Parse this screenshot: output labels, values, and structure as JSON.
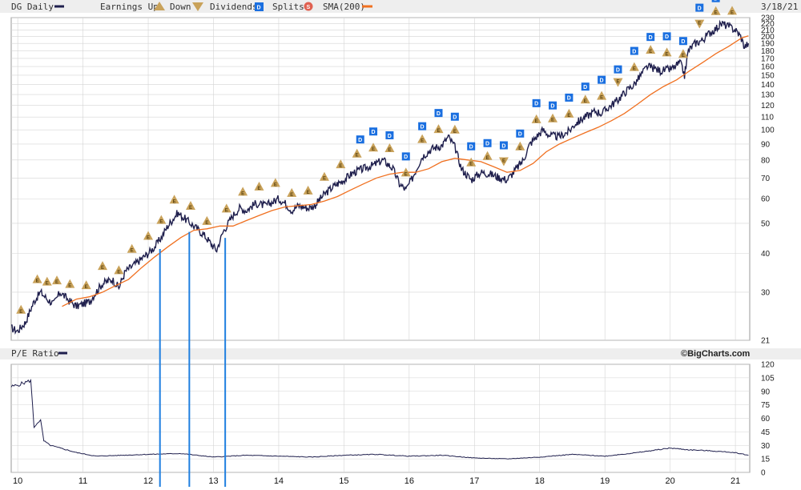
{
  "header": {
    "symbol_label": "DG Daily",
    "earnings_up_label": "Earnings Up",
    "earnings_down_label": "Down",
    "dividends_label": "Dividends",
    "splits_label": "Splits",
    "sma_label": "SMA(200)",
    "date_label": "3/18/21"
  },
  "lower_panel": {
    "label": "P/E Ratio",
    "credit": "©BigCharts.com"
  },
  "icons": {
    "earnings_up": "triangle-up-icon",
    "earnings_down": "triangle-down-icon",
    "dividend": "d-square-icon",
    "split": "s-circle-icon"
  },
  "colors": {
    "price": "#1f1f4d",
    "sma": "#f07020",
    "earnings": "#c9a25a",
    "dividend": "#1a6fe0",
    "split": "#e06050",
    "marker_line": "#1f7fe0",
    "grid": "#d4d4d4",
    "header_bg": "#eeeeee"
  },
  "chart_data": [
    {
      "type": "line",
      "title": "DG Daily",
      "y_scale": "log",
      "ylim": [
        21,
        230
      ],
      "y_ticks": [
        21,
        30,
        40,
        50,
        60,
        70,
        80,
        90,
        100,
        110,
        120,
        130,
        140,
        150,
        160,
        170,
        180,
        190,
        200,
        210,
        220,
        230
      ],
      "x_ticks": [
        "10",
        "11",
        "12",
        "13",
        "14",
        "15",
        "16",
        "17",
        "18",
        "19",
        "20",
        "21"
      ],
      "xlim": [
        2009.9,
        2021.22
      ],
      "grid": true,
      "legend_position": "top",
      "series": [
        {
          "name": "DG Daily",
          "points": [
            [
              2009.9,
              23
            ],
            [
              2010.0,
              22.5
            ],
            [
              2010.12,
              24
            ],
            [
              2010.25,
              28
            ],
            [
              2010.35,
              30
            ],
            [
              2010.45,
              28.5
            ],
            [
              2010.55,
              27.5
            ],
            [
              2010.65,
              30
            ],
            [
              2010.8,
              28
            ],
            [
              2010.9,
              27
            ],
            [
              2011.0,
              27.5
            ],
            [
              2011.1,
              28
            ],
            [
              2011.2,
              30
            ],
            [
              2011.3,
              32
            ],
            [
              2011.45,
              33
            ],
            [
              2011.55,
              31
            ],
            [
              2011.65,
              35
            ],
            [
              2011.8,
              37
            ],
            [
              2012.0,
              40
            ],
            [
              2012.1,
              42
            ],
            [
              2012.2,
              45
            ],
            [
              2012.3,
              49
            ],
            [
              2012.45,
              54
            ],
            [
              2012.55,
              52
            ],
            [
              2012.65,
              50
            ],
            [
              2012.75,
              48
            ],
            [
              2012.85,
              46
            ],
            [
              2013.0,
              42
            ],
            [
              2013.05,
              41
            ],
            [
              2013.15,
              47
            ],
            [
              2013.3,
              53
            ],
            [
              2013.4,
              56
            ],
            [
              2013.5,
              55
            ],
            [
              2013.65,
              58
            ],
            [
              2013.8,
              57
            ],
            [
              2014.0,
              60
            ],
            [
              2014.1,
              58
            ],
            [
              2014.2,
              55
            ],
            [
              2014.3,
              57
            ],
            [
              2014.45,
              56
            ],
            [
              2014.55,
              57
            ],
            [
              2014.7,
              62
            ],
            [
              2014.85,
              66
            ],
            [
              2015.0,
              69
            ],
            [
              2015.15,
              73
            ],
            [
              2015.3,
              75
            ],
            [
              2015.45,
              77
            ],
            [
              2015.6,
              80
            ],
            [
              2015.75,
              75
            ],
            [
              2015.85,
              67
            ],
            [
              2015.95,
              64
            ],
            [
              2016.05,
              70
            ],
            [
              2016.2,
              82
            ],
            [
              2016.35,
              87
            ],
            [
              2016.5,
              89
            ],
            [
              2016.6,
              95
            ],
            [
              2016.7,
              88
            ],
            [
              2016.8,
              75
            ],
            [
              2016.95,
              69
            ],
            [
              2017.1,
              73
            ],
            [
              2017.25,
              72
            ],
            [
              2017.4,
              70
            ],
            [
              2017.5,
              69
            ],
            [
              2017.6,
              73
            ],
            [
              2017.75,
              80
            ],
            [
              2017.85,
              90
            ],
            [
              2017.95,
              95
            ],
            [
              2018.05,
              100
            ],
            [
              2018.15,
              96
            ],
            [
              2018.3,
              95
            ],
            [
              2018.45,
              99
            ],
            [
              2018.55,
              105
            ],
            [
              2018.7,
              110
            ],
            [
              2018.85,
              115
            ],
            [
              2018.95,
              113
            ],
            [
              2019.05,
              118
            ],
            [
              2019.2,
              125
            ],
            [
              2019.35,
              135
            ],
            [
              2019.45,
              140
            ],
            [
              2019.55,
              150
            ],
            [
              2019.65,
              160
            ],
            [
              2019.75,
              158
            ],
            [
              2019.85,
              155
            ],
            [
              2019.95,
              156
            ],
            [
              2020.05,
              158
            ],
            [
              2020.15,
              165
            ],
            [
              2020.22,
              150
            ],
            [
              2020.28,
              180
            ],
            [
              2020.38,
              190
            ],
            [
              2020.5,
              195
            ],
            [
              2020.6,
              205
            ],
            [
              2020.7,
              212
            ],
            [
              2020.8,
              220
            ],
            [
              2020.9,
              215
            ],
            [
              2021.0,
              210
            ],
            [
              2021.08,
              200
            ],
            [
              2021.14,
              185
            ],
            [
              2021.2,
              190
            ]
          ]
        },
        {
          "name": "SMA(200)",
          "points": [
            [
              2010.68,
              27
            ],
            [
              2010.9,
              28.5
            ],
            [
              2011.1,
              29
            ],
            [
              2011.3,
              30
            ],
            [
              2011.5,
              31.5
            ],
            [
              2011.7,
              33
            ],
            [
              2011.9,
              36
            ],
            [
              2012.1,
              39
            ],
            [
              2012.3,
              42
            ],
            [
              2012.5,
              45
            ],
            [
              2012.7,
              47.5
            ],
            [
              2012.9,
              48
            ],
            [
              2013.1,
              49
            ],
            [
              2013.3,
              49
            ],
            [
              2013.5,
              51
            ],
            [
              2013.7,
              53
            ],
            [
              2013.9,
              55
            ],
            [
              2014.1,
              56.5
            ],
            [
              2014.3,
              57
            ],
            [
              2014.5,
              57.5
            ],
            [
              2014.7,
              59
            ],
            [
              2014.9,
              61
            ],
            [
              2015.1,
              64
            ],
            [
              2015.3,
              67
            ],
            [
              2015.5,
              70
            ],
            [
              2015.7,
              72
            ],
            [
              2015.9,
              73
            ],
            [
              2016.1,
              73
            ],
            [
              2016.3,
              75
            ],
            [
              2016.5,
              79
            ],
            [
              2016.7,
              81
            ],
            [
              2016.9,
              80
            ],
            [
              2017.1,
              79
            ],
            [
              2017.3,
              76
            ],
            [
              2017.5,
              73
            ],
            [
              2017.7,
              74
            ],
            [
              2017.9,
              78
            ],
            [
              2018.1,
              85
            ],
            [
              2018.3,
              90
            ],
            [
              2018.5,
              94
            ],
            [
              2018.7,
              98
            ],
            [
              2018.9,
              102
            ],
            [
              2019.1,
              107
            ],
            [
              2019.3,
              113
            ],
            [
              2019.5,
              121
            ],
            [
              2019.7,
              130
            ],
            [
              2019.9,
              138
            ],
            [
              2020.1,
              145
            ],
            [
              2020.3,
              155
            ],
            [
              2020.5,
              165
            ],
            [
              2020.7,
              176
            ],
            [
              2020.9,
              186
            ],
            [
              2021.1,
              198
            ],
            [
              2021.2,
              201
            ]
          ]
        }
      ],
      "earnings_up": [
        2010.05,
        2010.3,
        2010.45,
        2010.6,
        2010.8,
        2011.05,
        2011.3,
        2011.55,
        2011.75,
        2012.0,
        2012.2,
        2012.4,
        2012.65,
        2012.9,
        2013.2,
        2013.45,
        2013.7,
        2013.95,
        2014.2,
        2014.45,
        2014.7,
        2014.95,
        2015.2,
        2015.45,
        2015.7,
        2015.95,
        2016.2,
        2016.45,
        2016.7,
        2016.95,
        2017.2,
        2017.45,
        2017.7,
        2017.95,
        2018.2,
        2018.45,
        2018.7,
        2018.95,
        2019.2,
        2019.45,
        2019.7,
        2019.95,
        2020.2,
        2020.45,
        2020.7,
        2020.95
      ],
      "earnings_down": [
        2017.45,
        2019.2,
        2020.45
      ],
      "dividends": [
        2015.25,
        2015.45,
        2015.7,
        2015.95,
        2016.2,
        2016.45,
        2016.7,
        2016.95,
        2017.2,
        2017.45,
        2017.7,
        2017.95,
        2018.2,
        2018.45,
        2018.7,
        2018.95,
        2019.2,
        2019.45,
        2019.7,
        2019.95,
        2020.2,
        2020.45,
        2020.7,
        2020.95
      ],
      "splits": []
    },
    {
      "type": "line",
      "title": "P/E Ratio",
      "ylim": [
        0,
        120
      ],
      "y_ticks": [
        0,
        15,
        30,
        45,
        60,
        75,
        90,
        105,
        120
      ],
      "x_ticks": [
        "10",
        "11",
        "12",
        "13",
        "14",
        "15",
        "16",
        "17",
        "18",
        "19",
        "20",
        "21"
      ],
      "xlim": [
        2009.9,
        2021.22
      ],
      "grid": true,
      "series": [
        {
          "name": "P/E Ratio",
          "points": [
            [
              2009.9,
              95
            ],
            [
              2010.0,
              97
            ],
            [
              2010.12,
              100
            ],
            [
              2010.2,
              102
            ],
            [
              2010.25,
              50
            ],
            [
              2010.3,
              55
            ],
            [
              2010.35,
              58
            ],
            [
              2010.4,
              35
            ],
            [
              2010.5,
              30
            ],
            [
              2010.6,
              28
            ],
            [
              2010.7,
              26
            ],
            [
              2010.9,
              22
            ],
            [
              2011.2,
              18
            ],
            [
              2011.6,
              19
            ],
            [
              2012.0,
              20
            ],
            [
              2012.5,
              21
            ],
            [
              2013.0,
              17
            ],
            [
              2013.5,
              19
            ],
            [
              2014.0,
              18
            ],
            [
              2014.5,
              17
            ],
            [
              2015.0,
              19
            ],
            [
              2015.5,
              20
            ],
            [
              2016.0,
              18
            ],
            [
              2016.5,
              19
            ],
            [
              2017.0,
              16
            ],
            [
              2017.5,
              15
            ],
            [
              2018.0,
              17
            ],
            [
              2018.5,
              20
            ],
            [
              2019.0,
              18
            ],
            [
              2019.5,
              22
            ],
            [
              2020.0,
              27
            ],
            [
              2020.3,
              25
            ],
            [
              2020.6,
              24
            ],
            [
              2021.0,
              22
            ],
            [
              2021.2,
              19
            ]
          ]
        }
      ]
    }
  ],
  "annotations": {
    "vertical_markers": [
      2012.18,
      2012.63,
      2013.18
    ]
  }
}
